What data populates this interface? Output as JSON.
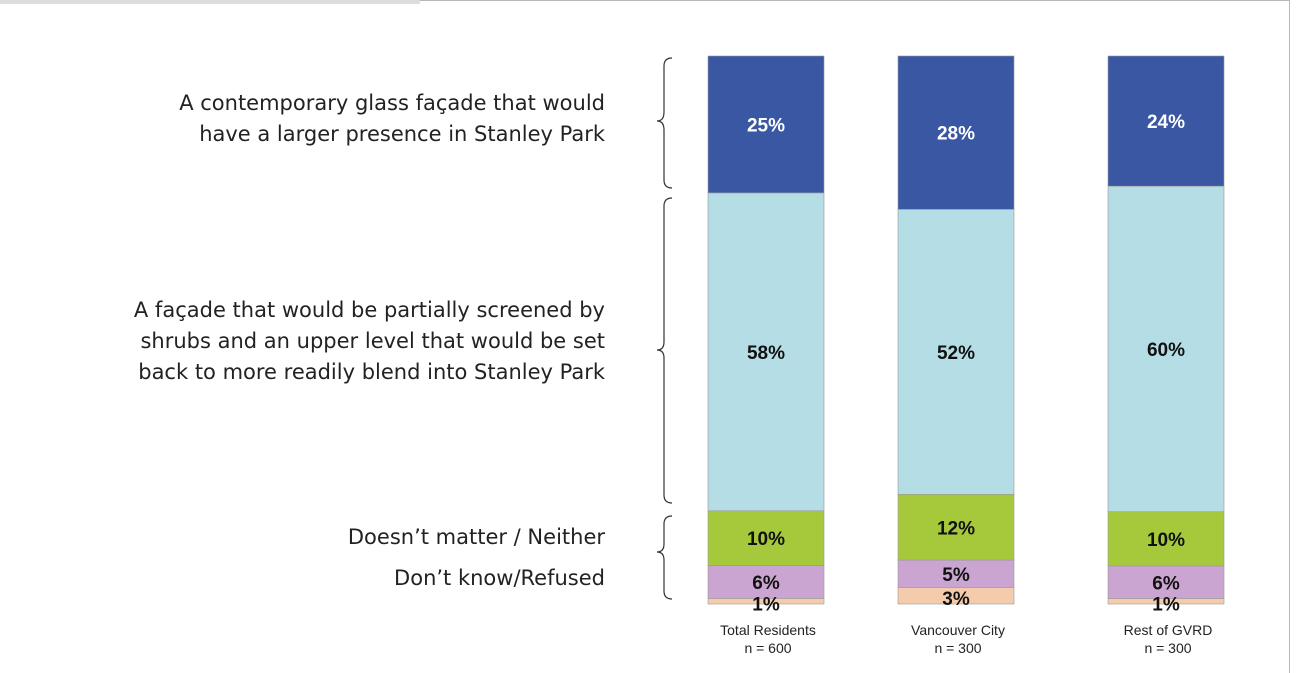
{
  "segment_labels": [
    [
      "A contemporary glass façade that would",
      "have a larger presence in Stanley Park"
    ],
    [
      "A façade that would be partially screened by",
      "shrubs and an upper level that would be set",
      "back to more readily blend into Stanley Park"
    ],
    [
      "Doesn’t matter / Neither"
    ],
    [
      "Don’t know/Refused"
    ]
  ],
  "chart_data": {
    "type": "bar",
    "stacked": true,
    "orientation": "vertical",
    "categories": [
      {
        "name": "Total Residents",
        "n": "n = 600"
      },
      {
        "name": "Vancouver City",
        "n": "n = 300"
      },
      {
        "name": "Rest of GVRD",
        "n": "n = 300"
      }
    ],
    "series": [
      {
        "name": "A contemporary glass façade that would have a larger presence in Stanley Park",
        "color": "#3a57a4",
        "values": [
          25,
          28,
          24
        ],
        "labels": [
          "25%",
          "28%",
          "24%"
        ]
      },
      {
        "name": "A façade that would be partially screened by shrubs and an upper level that would be set back to more readily blend into Stanley Park",
        "color": "#b5dde6",
        "values": [
          58,
          52,
          60
        ],
        "labels": [
          "58%",
          "52%",
          "60%"
        ]
      },
      {
        "name": "Doesn’t matter / Neither",
        "color": "#a6c93b",
        "values": [
          10,
          12,
          10
        ],
        "labels": [
          "10%",
          "12%",
          "10%"
        ]
      },
      {
        "name": "Don’t know/Refused",
        "color": "#caa5d1",
        "values": [
          6,
          5,
          6
        ],
        "labels": [
          "6%",
          "5%",
          "6%"
        ]
      },
      {
        "name": "",
        "color": "#f5ccab",
        "values": [
          1,
          3,
          1
        ],
        "labels": [
          "1%",
          "3%",
          "1%"
        ]
      }
    ],
    "label_colors": [
      "#ffffff",
      "#111111",
      "#111111",
      "#111111",
      "#111111"
    ],
    "ylim": [
      0,
      100
    ]
  }
}
